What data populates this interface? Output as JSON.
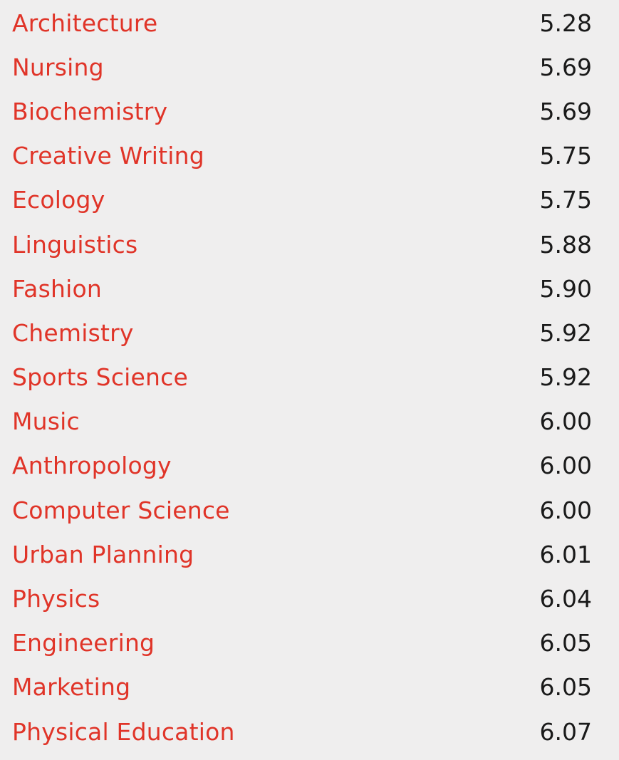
{
  "colors": {
    "background": "#efeeee",
    "label": "#e03428",
    "value": "#1a1a1a"
  },
  "rows": [
    {
      "label": "Architecture",
      "value": "5.28"
    },
    {
      "label": "Nursing",
      "value": "5.69"
    },
    {
      "label": "Biochemistry",
      "value": "5.69"
    },
    {
      "label": "Creative Writing",
      "value": "5.75"
    },
    {
      "label": "Ecology",
      "value": "5.75"
    },
    {
      "label": "Linguistics",
      "value": "5.88"
    },
    {
      "label": "Fashion",
      "value": "5.90"
    },
    {
      "label": "Chemistry",
      "value": "5.92"
    },
    {
      "label": "Sports Science",
      "value": "5.92"
    },
    {
      "label": "Music",
      "value": "6.00"
    },
    {
      "label": "Anthropology",
      "value": "6.00"
    },
    {
      "label": "Computer Science",
      "value": "6.00"
    },
    {
      "label": "Urban Planning",
      "value": "6.01"
    },
    {
      "label": "Physics",
      "value": "6.04"
    },
    {
      "label": "Engineering",
      "value": "6.05"
    },
    {
      "label": "Marketing",
      "value": "6.05"
    },
    {
      "label": "Physical Education",
      "value": "6.07"
    }
  ]
}
